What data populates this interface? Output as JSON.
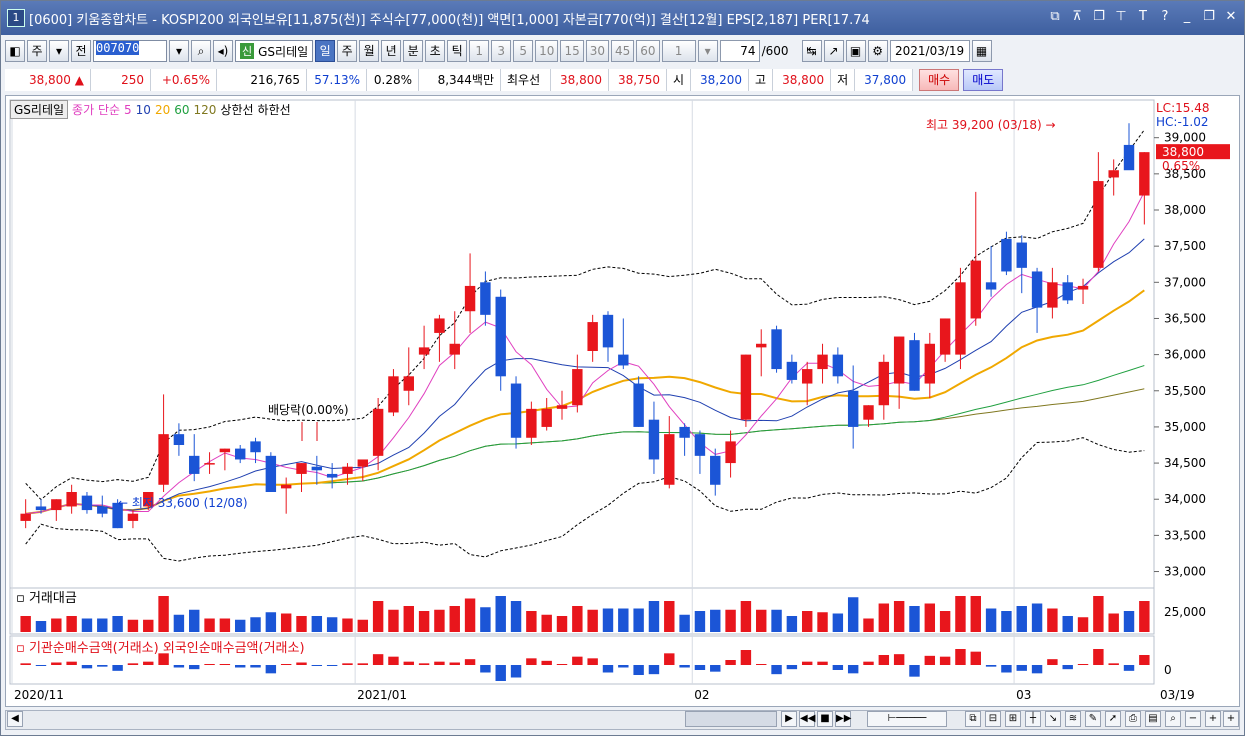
{
  "title": {
    "num": "1",
    "text": "[0600] 키움종합차트 - KOSPI200 외국인보유[11,875(천)] 주식수[77,000(천)] 액면[1,000] 자본금[770(억)] 결산[12월] EPS[2,187] PER[17.74"
  },
  "toolbar": {
    "mode": "주",
    "prev_label": "전",
    "code": "007070",
    "sin_label": "신",
    "name": "GS리테일",
    "periods": [
      "일",
      "주",
      "월",
      "년",
      "분",
      "초",
      "틱"
    ],
    "minutes": [
      "1",
      "3",
      "5",
      "10",
      "15",
      "30",
      "45",
      "60"
    ],
    "n_value": "1",
    "count_value": "74",
    "count_total": "/600",
    "date": "2021/03/19"
  },
  "info": {
    "price": "38,800",
    "change_arrow": "▲",
    "change": "250",
    "change_pct": "+0.65%",
    "volume": "216,765",
    "ratio1": "57.13%",
    "ratio2": "0.28%",
    "amount": "8,344백만",
    "best_label": "최우선",
    "best_ask": "38,800",
    "best_bid": "38,750",
    "open_label": "시",
    "open": "38,200",
    "high_label": "고",
    "high": "38,800",
    "low_label": "저",
    "low": "37,800",
    "buy_label": "매수",
    "sell_label": "매도"
  },
  "legend": {
    "stock": "GS리테일",
    "ma_label": "종가 단순",
    "ma_periods": [
      "5",
      "10",
      "20",
      "60",
      "120"
    ],
    "upper": "상한선",
    "lower": "하한선"
  },
  "annotations": {
    "dividend": "배당락(0.00%)",
    "high": "최고 39,200 (03/18)",
    "low": "최저 33,600 (12/08)",
    "lc": "LC:15.48",
    "hc": "HC:-1.02",
    "last_price": "38,800",
    "last_pct": "0.65%"
  },
  "panels": {
    "volume_title": "거래대금",
    "volume_tick": "25,000",
    "flow_title": "기관순매수금액(거래소) 외국인순매수금액(거래소)",
    "flow_tick": "0"
  },
  "xaxis": [
    "2020/11",
    "2021/01",
    "02",
    "03",
    "03/19"
  ],
  "colors": {
    "up": "#e8161c",
    "down": "#1b55d6",
    "ma5": "#e040c0",
    "ma10": "#2040b0",
    "ma20": "#f0a800",
    "ma60": "#20a040",
    "ma120": "#807820"
  },
  "chart_data": {
    "type": "candlestick",
    "y_ticks": [
      33000,
      33500,
      34000,
      34500,
      35000,
      35500,
      36000,
      36500,
      37000,
      37500,
      38000,
      38500,
      39000
    ],
    "ylim": [
      32800,
      39300
    ],
    "candles": [
      {
        "o": 33700,
        "h": 34000,
        "l": 33600,
        "c": 33800
      },
      {
        "o": 33900,
        "h": 34000,
        "l": 33800,
        "c": 33850
      },
      {
        "o": 33850,
        "h": 34000,
        "l": 33700,
        "c": 34000
      },
      {
        "o": 33900,
        "h": 34200,
        "l": 33800,
        "c": 34100
      },
      {
        "o": 34050,
        "h": 34100,
        "l": 33800,
        "c": 33850
      },
      {
        "o": 33900,
        "h": 34050,
        "l": 33750,
        "c": 33800
      },
      {
        "o": 33950,
        "h": 34000,
        "l": 33600,
        "c": 33600
      },
      {
        "o": 33700,
        "h": 33850,
        "l": 33600,
        "c": 33800
      },
      {
        "o": 33900,
        "h": 34100,
        "l": 33850,
        "c": 34100
      },
      {
        "o": 34200,
        "h": 35450,
        "l": 34100,
        "c": 34900
      },
      {
        "o": 34900,
        "h": 35050,
        "l": 34600,
        "c": 34750
      },
      {
        "o": 34600,
        "h": 34900,
        "l": 34250,
        "c": 34350
      },
      {
        "o": 34500,
        "h": 34650,
        "l": 34350,
        "c": 34500
      },
      {
        "o": 34650,
        "h": 34700,
        "l": 34400,
        "c": 34700
      },
      {
        "o": 34700,
        "h": 34750,
        "l": 34500,
        "c": 34550
      },
      {
        "o": 34800,
        "h": 34850,
        "l": 34500,
        "c": 34650
      },
      {
        "o": 34600,
        "h": 34650,
        "l": 34100,
        "c": 34100
      },
      {
        "o": 34150,
        "h": 34300,
        "l": 33800,
        "c": 34200
      },
      {
        "o": 34350,
        "h": 34500,
        "l": 34100,
        "c": 34500
      },
      {
        "o": 34450,
        "h": 34600,
        "l": 34200,
        "c": 34400
      },
      {
        "o": 34350,
        "h": 34500,
        "l": 34150,
        "c": 34300
      },
      {
        "o": 34350,
        "h": 34500,
        "l": 34200,
        "c": 34450
      },
      {
        "o": 34450,
        "h": 34500,
        "l": 34250,
        "c": 34550
      },
      {
        "o": 34600,
        "h": 35400,
        "l": 34400,
        "c": 35250
      },
      {
        "o": 35200,
        "h": 35800,
        "l": 35150,
        "c": 35700
      },
      {
        "o": 35500,
        "h": 36100,
        "l": 35300,
        "c": 35700
      },
      {
        "o": 36000,
        "h": 36400,
        "l": 35800,
        "c": 36100
      },
      {
        "o": 36300,
        "h": 36550,
        "l": 35900,
        "c": 36500
      },
      {
        "o": 36000,
        "h": 36600,
        "l": 35800,
        "c": 36150
      },
      {
        "o": 36600,
        "h": 37400,
        "l": 36300,
        "c": 36950
      },
      {
        "o": 37000,
        "h": 37150,
        "l": 36400,
        "c": 36550
      },
      {
        "o": 36800,
        "h": 36900,
        "l": 35500,
        "c": 35700
      },
      {
        "o": 35600,
        "h": 35700,
        "l": 34700,
        "c": 34850
      },
      {
        "o": 34850,
        "h": 35350,
        "l": 34750,
        "c": 35250
      },
      {
        "o": 35000,
        "h": 35400,
        "l": 34950,
        "c": 35250
      },
      {
        "o": 35250,
        "h": 35500,
        "l": 35100,
        "c": 35300
      },
      {
        "o": 35300,
        "h": 36000,
        "l": 35200,
        "c": 35800
      },
      {
        "o": 36050,
        "h": 36550,
        "l": 35900,
        "c": 36450
      },
      {
        "o": 36550,
        "h": 36600,
        "l": 35900,
        "c": 36100
      },
      {
        "o": 36000,
        "h": 36500,
        "l": 35800,
        "c": 35850
      },
      {
        "o": 35600,
        "h": 35700,
        "l": 35000,
        "c": 35000
      },
      {
        "o": 35100,
        "h": 35350,
        "l": 34350,
        "c": 34550
      },
      {
        "o": 34200,
        "h": 35150,
        "l": 34150,
        "c": 34900
      },
      {
        "o": 35000,
        "h": 35050,
        "l": 34600,
        "c": 34850
      },
      {
        "o": 34900,
        "h": 34950,
        "l": 34350,
        "c": 34600
      },
      {
        "o": 34600,
        "h": 34700,
        "l": 34050,
        "c": 34200
      },
      {
        "o": 34500,
        "h": 34950,
        "l": 34300,
        "c": 34800
      },
      {
        "o": 35100,
        "h": 36000,
        "l": 35000,
        "c": 36000
      },
      {
        "o": 36100,
        "h": 36350,
        "l": 35700,
        "c": 36150
      },
      {
        "o": 36350,
        "h": 36400,
        "l": 35750,
        "c": 35800
      },
      {
        "o": 35900,
        "h": 36000,
        "l": 35600,
        "c": 35650
      },
      {
        "o": 35600,
        "h": 35900,
        "l": 35300,
        "c": 35800
      },
      {
        "o": 35800,
        "h": 36150,
        "l": 35600,
        "c": 36000
      },
      {
        "o": 36000,
        "h": 36100,
        "l": 35600,
        "c": 35700
      },
      {
        "o": 35500,
        "h": 35850,
        "l": 34700,
        "c": 35000
      },
      {
        "o": 35100,
        "h": 35300,
        "l": 35000,
        "c": 35300
      },
      {
        "o": 35300,
        "h": 36000,
        "l": 35100,
        "c": 35900
      },
      {
        "o": 35600,
        "h": 36250,
        "l": 35250,
        "c": 36250
      },
      {
        "o": 36200,
        "h": 36300,
        "l": 35500,
        "c": 35500
      },
      {
        "o": 35600,
        "h": 36300,
        "l": 35400,
        "c": 36150
      },
      {
        "o": 36000,
        "h": 36500,
        "l": 35900,
        "c": 36500
      },
      {
        "o": 36000,
        "h": 37200,
        "l": 35800,
        "c": 37000
      },
      {
        "o": 36500,
        "h": 38250,
        "l": 36400,
        "c": 37300
      },
      {
        "o": 37000,
        "h": 37500,
        "l": 36800,
        "c": 36900
      },
      {
        "o": 37600,
        "h": 37700,
        "l": 37100,
        "c": 37150
      },
      {
        "o": 37550,
        "h": 37650,
        "l": 36850,
        "c": 37200
      },
      {
        "o": 37150,
        "h": 37200,
        "l": 36300,
        "c": 36650
      },
      {
        "o": 36650,
        "h": 37200,
        "l": 36500,
        "c": 37000
      },
      {
        "o": 37000,
        "h": 37100,
        "l": 36700,
        "c": 36750
      },
      {
        "o": 36900,
        "h": 37050,
        "l": 36700,
        "c": 36950
      },
      {
        "o": 37200,
        "h": 38800,
        "l": 37150,
        "c": 38400
      },
      {
        "o": 38450,
        "h": 38700,
        "l": 38200,
        "c": 38550
      },
      {
        "o": 38900,
        "h": 39200,
        "l": 38600,
        "c": 38550
      },
      {
        "o": 38200,
        "h": 38800,
        "l": 37800,
        "c": 38800
      }
    ]
  }
}
